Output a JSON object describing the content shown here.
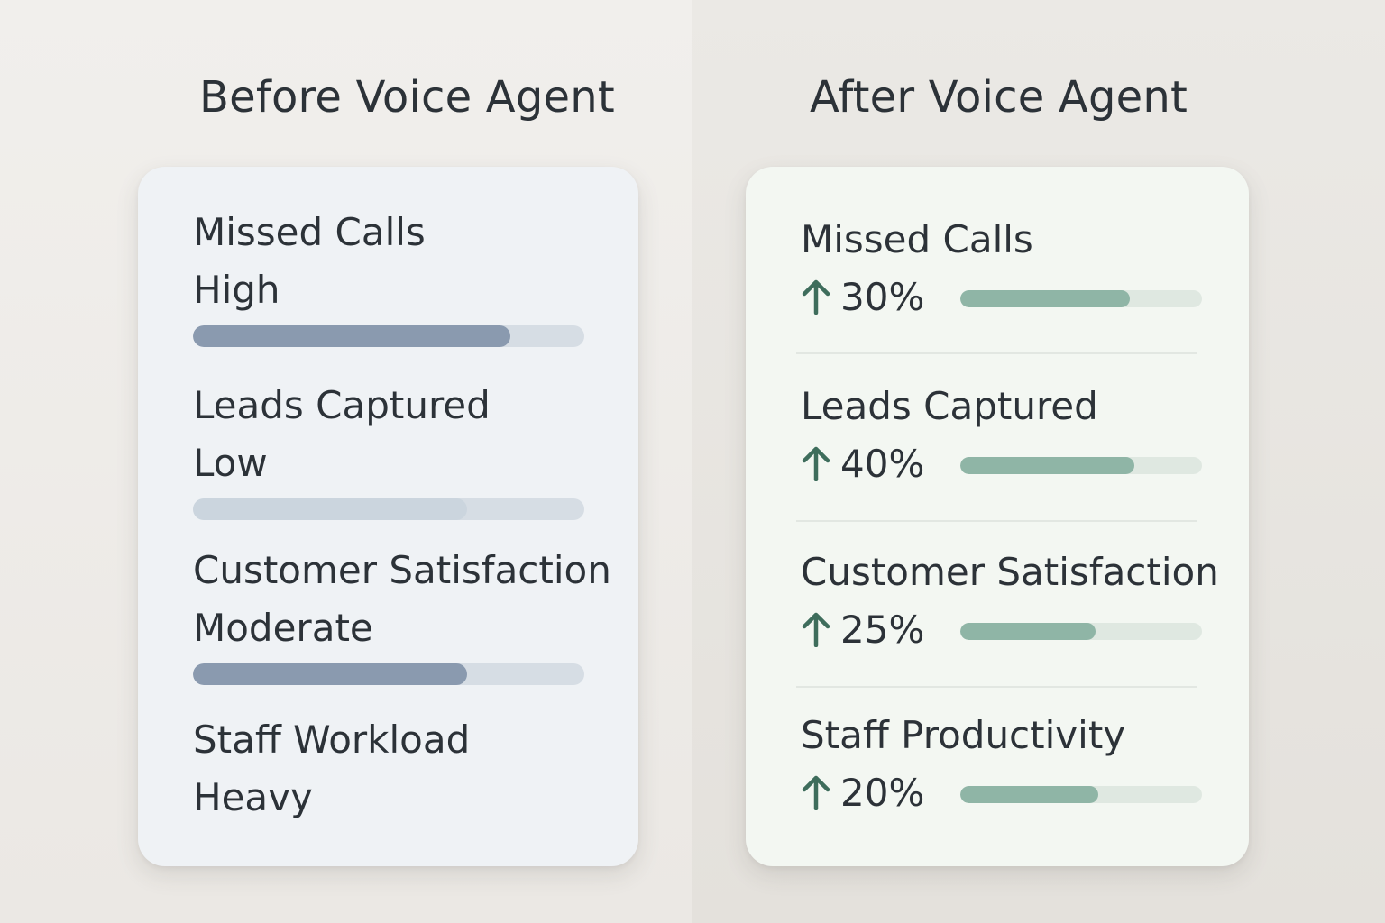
{
  "colors": {
    "before_fill_dark": "#8a9aaf",
    "before_fill_light": "#cbd5de",
    "before_track": "#d6dde4",
    "after_fill": "#8fb5a6",
    "after_track": "#dfe8e1",
    "arrow": "#3e6d5c"
  },
  "before": {
    "title": "Before Voice Agent",
    "metrics": [
      {
        "label": "Missed Calls",
        "level": "High",
        "bar_fraction": 0.81,
        "bar_tone": "dark"
      },
      {
        "label": "Leads Captured",
        "level": "Low",
        "bar_fraction": 0.7,
        "bar_tone": "light"
      },
      {
        "label": "Customer Satisfaction",
        "level": "Moderate",
        "bar_fraction": 0.7,
        "bar_tone": "dark"
      },
      {
        "label": "Staff Workload",
        "level": "Heavy"
      }
    ]
  },
  "after": {
    "title": "After Voice Agent",
    "arrow_icon": "arrow-up-icon",
    "metrics": [
      {
        "label": "Missed Calls",
        "change": "30%",
        "bar_fraction": 0.7
      },
      {
        "label": "Leads Captured",
        "change": "40%",
        "bar_fraction": 0.72
      },
      {
        "label": "Customer Satisfaction",
        "change": "25%",
        "bar_fraction": 0.56
      },
      {
        "label": "Staff Productivity",
        "change": "20%",
        "bar_fraction": 0.57
      }
    ]
  }
}
